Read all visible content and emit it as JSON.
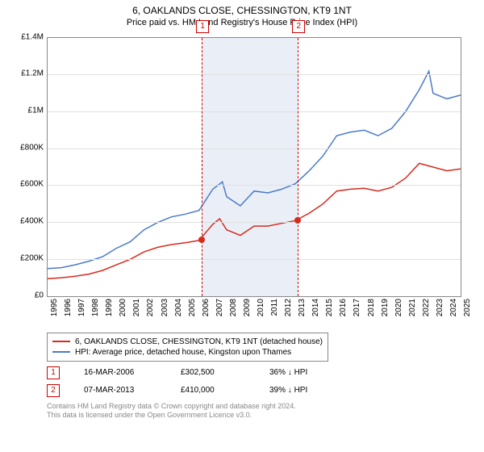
{
  "header": {
    "title": "6, OAKLANDS CLOSE, CHESSINGTON, KT9 1NT",
    "subtitle": "Price paid vs. HM Land Registry's House Price Index (HPI)"
  },
  "chart": {
    "type": "line",
    "background_color": "#ffffff",
    "grid_color": "#e0e0e0",
    "border_color": "#888888",
    "ylim": [
      0,
      1400000
    ],
    "ytick_step": 200000,
    "ytick_labels": [
      "£0",
      "£200K",
      "£400K",
      "£600K",
      "£800K",
      "£1M",
      "£1.2M",
      "£1.4M"
    ],
    "xlim": [
      1995,
      2025
    ],
    "xtick_step": 1,
    "xtick_labels": [
      "1995",
      "1996",
      "1997",
      "1998",
      "1999",
      "2000",
      "2001",
      "2002",
      "2003",
      "2004",
      "2005",
      "2006",
      "2007",
      "2008",
      "2009",
      "2010",
      "2011",
      "2012",
      "2013",
      "2014",
      "2015",
      "2016",
      "2017",
      "2018",
      "2019",
      "2020",
      "2021",
      "2022",
      "2023",
      "2024",
      "2025"
    ],
    "band": {
      "start": 2006.2,
      "end": 2013.18,
      "color": "#eaeff7"
    },
    "markers": [
      {
        "label": "1",
        "x": 2006.2,
        "y": 302500
      },
      {
        "label": "2",
        "x": 2013.18,
        "y": 410000
      }
    ],
    "series": [
      {
        "name": "price_paid",
        "color": "#d52b1e",
        "width": 1.5,
        "points": [
          [
            1995,
            95000
          ],
          [
            1996,
            100000
          ],
          [
            1997,
            108000
          ],
          [
            1998,
            120000
          ],
          [
            1999,
            140000
          ],
          [
            2000,
            170000
          ],
          [
            2001,
            200000
          ],
          [
            2002,
            240000
          ],
          [
            2003,
            265000
          ],
          [
            2004,
            280000
          ],
          [
            2005,
            290000
          ],
          [
            2006,
            302500
          ],
          [
            2007,
            390000
          ],
          [
            2007.5,
            420000
          ],
          [
            2008,
            360000
          ],
          [
            2009,
            330000
          ],
          [
            2010,
            380000
          ],
          [
            2011,
            380000
          ],
          [
            2012,
            395000
          ],
          [
            2013,
            410000
          ],
          [
            2014,
            450000
          ],
          [
            2015,
            500000
          ],
          [
            2016,
            570000
          ],
          [
            2017,
            580000
          ],
          [
            2018,
            585000
          ],
          [
            2019,
            570000
          ],
          [
            2020,
            590000
          ],
          [
            2021,
            640000
          ],
          [
            2022,
            720000
          ],
          [
            2023,
            700000
          ],
          [
            2024,
            680000
          ],
          [
            2025,
            690000
          ]
        ]
      },
      {
        "name": "hpi",
        "color": "#4a7bc8",
        "width": 1.5,
        "points": [
          [
            1995,
            150000
          ],
          [
            1996,
            155000
          ],
          [
            1997,
            170000
          ],
          [
            1998,
            190000
          ],
          [
            1999,
            215000
          ],
          [
            2000,
            260000
          ],
          [
            2001,
            295000
          ],
          [
            2002,
            360000
          ],
          [
            2003,
            400000
          ],
          [
            2004,
            430000
          ],
          [
            2005,
            445000
          ],
          [
            2006,
            465000
          ],
          [
            2007,
            580000
          ],
          [
            2007.7,
            620000
          ],
          [
            2008,
            540000
          ],
          [
            2009,
            490000
          ],
          [
            2010,
            570000
          ],
          [
            2011,
            560000
          ],
          [
            2012,
            580000
          ],
          [
            2013,
            610000
          ],
          [
            2014,
            680000
          ],
          [
            2015,
            760000
          ],
          [
            2016,
            870000
          ],
          [
            2017,
            890000
          ],
          [
            2018,
            900000
          ],
          [
            2019,
            870000
          ],
          [
            2020,
            910000
          ],
          [
            2021,
            1000000
          ],
          [
            2022,
            1120000
          ],
          [
            2022.7,
            1220000
          ],
          [
            2023,
            1100000
          ],
          [
            2024,
            1070000
          ],
          [
            2025,
            1090000
          ]
        ]
      }
    ],
    "marker_dot_color": "#d52b1e",
    "marker_line_color": "#d00000",
    "label_fontsize": 10
  },
  "legend": {
    "items": [
      {
        "color": "#d52b1e",
        "label": "6, OAKLANDS CLOSE, CHESSINGTON, KT9 1NT (detached house)"
      },
      {
        "color": "#4a7bc8",
        "label": "HPI: Average price, detached house, Kingston upon Thames"
      }
    ]
  },
  "sales": [
    {
      "marker": "1",
      "date": "16-MAR-2006",
      "price": "£302,500",
      "delta": "36% ↓ HPI"
    },
    {
      "marker": "2",
      "date": "07-MAR-2013",
      "price": "£410,000",
      "delta": "39% ↓ HPI"
    }
  ],
  "footer": {
    "line1": "Contains HM Land Registry data © Crown copyright and database right 2024.",
    "line2": "This data is licensed under the Open Government Licence v3.0."
  }
}
